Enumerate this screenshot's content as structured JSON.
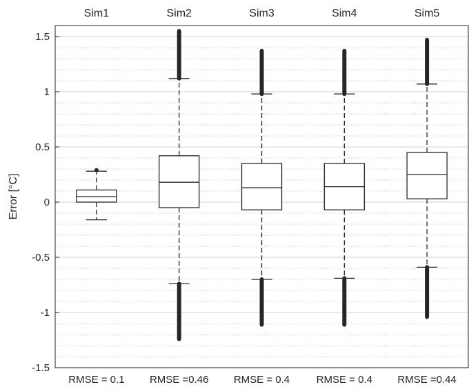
{
  "chart_data": {
    "type": "boxplot",
    "ylabel": "Error [°C]",
    "ylim": [
      -1.5,
      1.6
    ],
    "yticks": [
      -1.5,
      -1,
      -0.5,
      0,
      0.5,
      1,
      1.5
    ],
    "ytick_labels": [
      "-1.5",
      "-1",
      "-0.5",
      "0",
      "0.5",
      "1",
      "1.5"
    ],
    "grid": "major and minor",
    "categories": [
      "Sim1",
      "Sim2",
      "Sim3",
      "Sim4",
      "Sim5"
    ],
    "bottom_labels": [
      "RMSE = 0.1",
      "RMSE =0.46",
      "RMSE = 0.4",
      "RMSE = 0.4",
      "RMSE =0.44"
    ],
    "boxes": [
      {
        "name": "Sim1",
        "whisker_low": -0.16,
        "q1": 0.0,
        "median": 0.05,
        "q3": 0.11,
        "whisker_high": 0.28,
        "outliers_low": null,
        "outliers_high": [
          0.28,
          0.29
        ]
      },
      {
        "name": "Sim2",
        "whisker_low": -0.74,
        "q1": -0.05,
        "median": 0.18,
        "q3": 0.42,
        "whisker_high": 1.12,
        "outliers_low": [
          -1.24,
          -0.74
        ],
        "outliers_high": [
          1.12,
          1.55
        ]
      },
      {
        "name": "Sim3",
        "whisker_low": -0.7,
        "q1": -0.07,
        "median": 0.13,
        "q3": 0.35,
        "whisker_high": 0.98,
        "outliers_low": [
          -1.11,
          -0.7
        ],
        "outliers_high": [
          0.98,
          1.37
        ]
      },
      {
        "name": "Sim4",
        "whisker_low": -0.69,
        "q1": -0.07,
        "median": 0.14,
        "q3": 0.35,
        "whisker_high": 0.98,
        "outliers_low": [
          -1.11,
          -0.69
        ],
        "outliers_high": [
          0.98,
          1.37
        ]
      },
      {
        "name": "Sim5",
        "whisker_low": -0.59,
        "q1": 0.03,
        "median": 0.25,
        "q3": 0.45,
        "whisker_high": 1.07,
        "outliers_low": [
          -1.04,
          -0.59
        ],
        "outliers_high": [
          1.07,
          1.47
        ]
      }
    ]
  }
}
